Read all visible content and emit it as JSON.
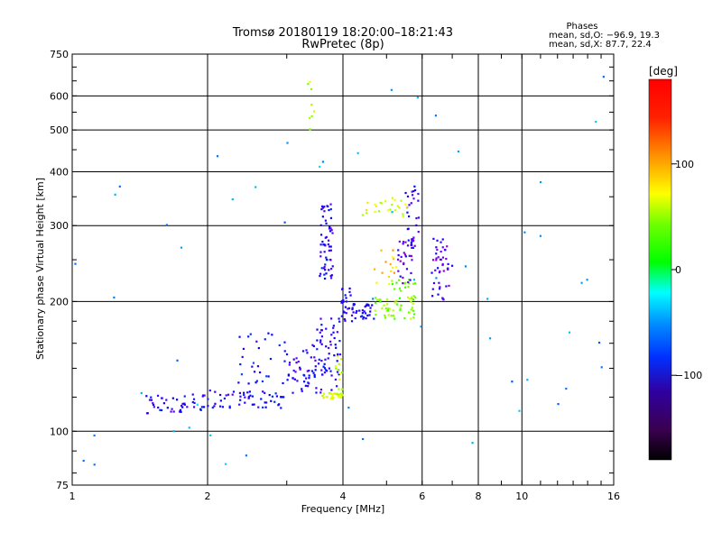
{
  "chart_data": {
    "type": "scatter",
    "title": "Tromsø 20180119 18:20:00–18:21:43",
    "subtitle": "RwPretec (8p)",
    "xlabel": "Frequency [MHz]",
    "ylabel": "Stationary phase Virtual Height [km]",
    "x_scale": "log",
    "y_scale": "log",
    "xlim": [
      1,
      16
    ],
    "ylim": [
      75,
      750
    ],
    "x_ticks": [
      "1",
      "2",
      "4",
      "6",
      "8",
      "10",
      "16"
    ],
    "y_ticks": [
      "75",
      "100",
      "200",
      "300",
      "400",
      "500",
      "600",
      "750"
    ],
    "grid": true,
    "phases": {
      "title": "Phases",
      "line_o": "mean, sd,O: −96.9, 19.3",
      "line_x": "mean, sd,X:  87.7, 22.4"
    },
    "colorbar": {
      "label": "[deg]",
      "range": [
        -180,
        180
      ],
      "ticks": [
        "100",
        "0",
        "−100"
      ],
      "tick_values": [
        100,
        0,
        -100
      ]
    },
    "clusters": [
      {
        "x_range": [
          1.45,
          2.0
        ],
        "y_range": [
          110,
          122
        ],
        "phase": -110,
        "count": 45
      },
      {
        "x_range": [
          2.0,
          3.0
        ],
        "y_range": [
          113,
          125
        ],
        "phase": -105,
        "count": 55
      },
      {
        "x_range": [
          3.0,
          3.9
        ],
        "y_range": [
          122,
          140
        ],
        "phase": -110,
        "count": 35
      },
      {
        "x_range": [
          2.3,
          3.0
        ],
        "y_range": [
          128,
          170
        ],
        "phase": -100,
        "count": 30
      },
      {
        "x_range": [
          3.0,
          3.5
        ],
        "y_range": [
          130,
          160
        ],
        "phase": -115,
        "count": 25
      },
      {
        "x_range": [
          3.5,
          3.95
        ],
        "y_range": [
          135,
          185
        ],
        "phase": -110,
        "count": 50
      },
      {
        "x_range": [
          3.6,
          4.0
        ],
        "y_range": [
          119,
          123
        ],
        "phase": 100,
        "count": 30
      },
      {
        "x_range": [
          3.85,
          4.0
        ],
        "y_range": [
          123,
          165
        ],
        "phase": 90,
        "count": 12
      },
      {
        "x_range": [
          3.95,
          4.2
        ],
        "y_range": [
          180,
          215
        ],
        "phase": -110,
        "count": 25
      },
      {
        "x_range": [
          4.2,
          4.7
        ],
        "y_range": [
          182,
          198
        ],
        "phase": -105,
        "count": 30
      },
      {
        "x_range": [
          4.7,
          5.8
        ],
        "y_range": [
          182,
          205
        ],
        "phase": 75,
        "count": 45
      },
      {
        "x_range": [
          5.1,
          5.85
        ],
        "y_range": [
          195,
          225
        ],
        "phase": 65,
        "count": 20
      },
      {
        "x_range": [
          3.55,
          3.8
        ],
        "y_range": [
          225,
          340
        ],
        "phase": -110,
        "count": 60
      },
      {
        "x_range": [
          5.3,
          5.8
        ],
        "y_range": [
          220,
          280
        ],
        "phase": -130,
        "count": 30
      },
      {
        "x_range": [
          5.5,
          5.9
        ],
        "y_range": [
          260,
          370
        ],
        "phase": -115,
        "count": 30
      },
      {
        "x_range": [
          4.4,
          5.6
        ],
        "y_range": [
          315,
          350
        ],
        "phase": 100,
        "count": 25
      },
      {
        "x_range": [
          6.3,
          7.0
        ],
        "y_range": [
          200,
          280
        ],
        "phase": -125,
        "count": 45
      },
      {
        "x_range": [
          4.7,
          5.3
        ],
        "y_range": [
          210,
          265
        ],
        "phase": 120,
        "count": 15
      },
      {
        "x_range": [
          3.3,
          3.5
        ],
        "y_range": [
          500,
          650
        ],
        "phase": 90,
        "count": 8
      },
      {
        "x_range": [
          1.0,
          16.0
        ],
        "y_range": [
          80,
          700
        ],
        "phase": -60,
        "count": 55
      }
    ]
  }
}
